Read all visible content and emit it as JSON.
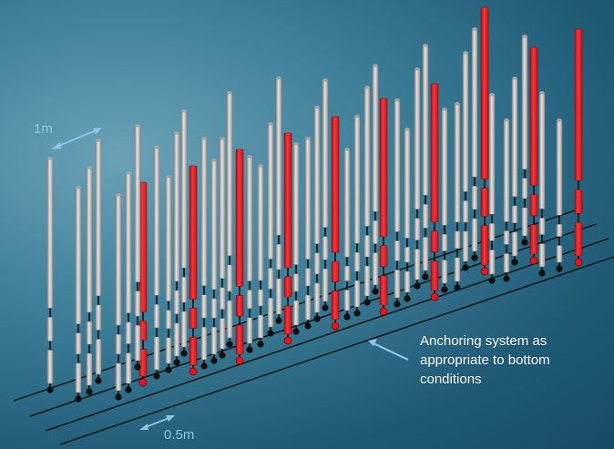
{
  "labels": {
    "spacing_long": "1m",
    "spacing_short": "0.5m",
    "anchoring_line1": "Anchoring system as",
    "anchoring_line2": "appropriate to bottom",
    "anchoring_line3": "conditions"
  },
  "colors": {
    "background": "#3f7f99",
    "grey_element": "#bdbdbd",
    "red_element": "#e4161c",
    "connector": "#111111",
    "rope": "#1a1a1a",
    "arrow": "#8fc3e8"
  }
}
